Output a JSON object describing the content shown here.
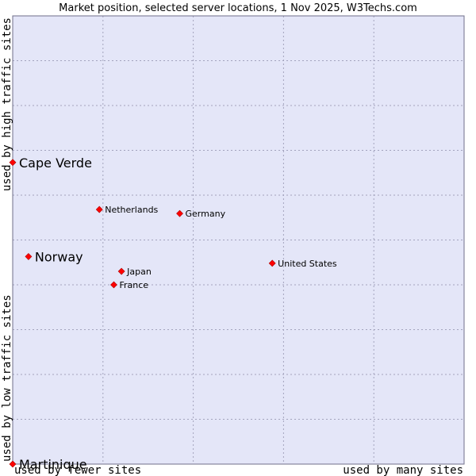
{
  "chart_data": {
    "type": "scatter",
    "title": "Market position, selected server locations, 1 Nov 2025, W3Techs.com",
    "x_low_label": "used by fewer sites",
    "x_high_label": "used by many sites",
    "y_low_label": "used by low traffic sites",
    "y_high_label": "used by high traffic sites",
    "xlim": [
      0,
      100
    ],
    "ylim": [
      0,
      100
    ],
    "grid": true,
    "colors": {
      "plot_bg": "#e4e6f8",
      "grid": "#a3a3bd",
      "marker": "#ff0000",
      "marker_edge": "#aa0000"
    },
    "points": [
      {
        "name": "Cape Verde",
        "x": 0.0,
        "y": 67.3,
        "emphasis": true
      },
      {
        "name": "Norway",
        "x": 3.5,
        "y": 46.3,
        "emphasis": true
      },
      {
        "name": "Martinique",
        "x": 0.0,
        "y": 0.0,
        "emphasis": true
      },
      {
        "name": "Netherlands",
        "x": 19.2,
        "y": 56.8,
        "emphasis": false
      },
      {
        "name": "Germany",
        "x": 37.0,
        "y": 55.9,
        "emphasis": false
      },
      {
        "name": "Japan",
        "x": 24.1,
        "y": 43.0,
        "emphasis": false
      },
      {
        "name": "France",
        "x": 22.4,
        "y": 40.0,
        "emphasis": false
      },
      {
        "name": "United States",
        "x": 57.5,
        "y": 44.8,
        "emphasis": false
      }
    ]
  }
}
